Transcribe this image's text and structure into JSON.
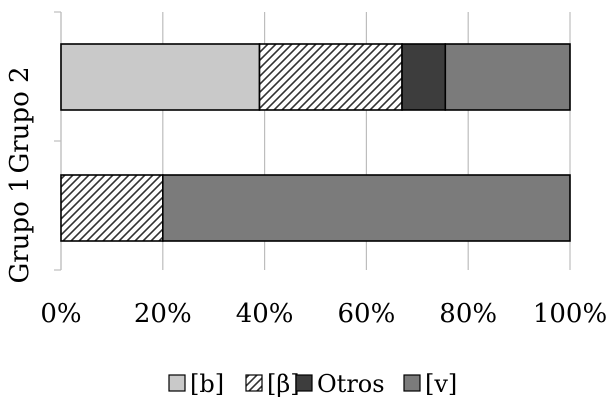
{
  "chart_data": {
    "type": "bar",
    "orientation": "horizontal",
    "stacked": "percent",
    "title": "",
    "xlabel": "",
    "ylabel": "",
    "xlim": [
      0,
      100
    ],
    "x_ticks": [
      "0%",
      "20%",
      "40%",
      "60%",
      "80%",
      "100%"
    ],
    "categories": [
      "Grupo 2",
      "Grupo 1"
    ],
    "series": [
      {
        "name": "[b]",
        "fill": "#c9c9c9",
        "pattern": "solid",
        "values": [
          39,
          0
        ]
      },
      {
        "name": "[β]",
        "fill": "#ffffff",
        "pattern": "hatch",
        "values": [
          28,
          20
        ]
      },
      {
        "name": "Otros",
        "fill": "#3d3d3d",
        "pattern": "solid",
        "values": [
          8.5,
          0
        ]
      },
      {
        "name": "[v]",
        "fill": "#7b7b7b",
        "pattern": "solid",
        "values": [
          24.5,
          80
        ]
      }
    ],
    "grid": true,
    "legend_position": "bottom"
  }
}
